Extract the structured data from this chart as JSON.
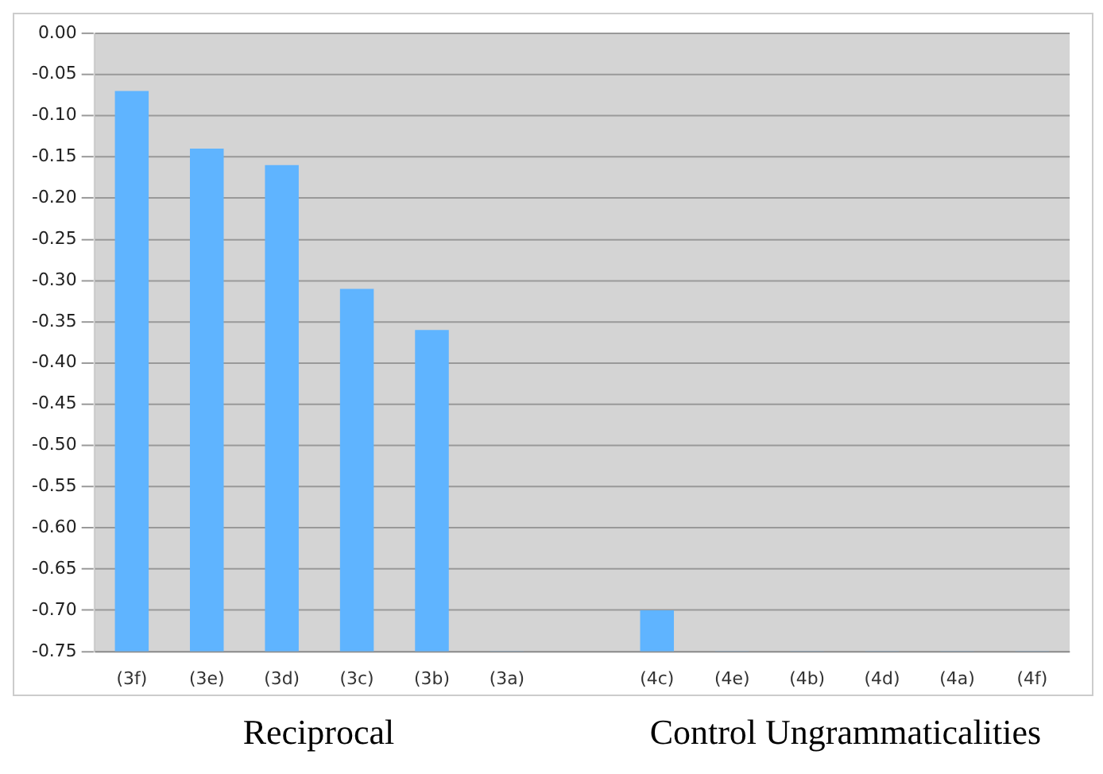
{
  "chart_data": {
    "type": "bar",
    "categories": [
      "(3f)",
      "(3e)",
      "(3d)",
      "(3c)",
      "(3b)",
      "(3a)",
      null,
      "(4c)",
      "(4e)",
      "(4b)",
      "(4d)",
      "(4a)",
      "(4f)"
    ],
    "values": [
      0.68,
      0.61,
      0.59,
      0.44,
      0.39,
      0,
      null,
      0.05,
      0,
      0,
      0,
      0,
      0
    ],
    "base": [
      -0.75,
      -0.75,
      -0.75,
      -0.75,
      -0.75,
      -0.75,
      null,
      -0.75,
      -0.75,
      -0.75,
      -0.75,
      -0.75,
      -0.75
    ],
    "color": "#5fb4ff",
    "ylim": [
      -0.75,
      0
    ],
    "yticks": [
      {
        "value": 0,
        "label": "0.00"
      },
      {
        "value": -0.05,
        "label": "-0.05"
      },
      {
        "value": -0.1,
        "label": "-0.10"
      },
      {
        "value": -0.15,
        "label": "-0.15"
      },
      {
        "value": -0.2,
        "label": "-0.20"
      },
      {
        "value": -0.25,
        "label": "-0.25"
      },
      {
        "value": -0.3,
        "label": "-0.30"
      },
      {
        "value": -0.35,
        "label": "-0.35"
      },
      {
        "value": -0.4,
        "label": "-0.40"
      },
      {
        "value": -0.45,
        "label": "-0.45"
      },
      {
        "value": -0.5,
        "label": "-0.50"
      },
      {
        "value": -0.55,
        "label": "-0.55"
      },
      {
        "value": -0.6,
        "label": "-0.60"
      },
      {
        "value": -0.65,
        "label": "-0.65"
      },
      {
        "value": -0.7,
        "label": "-0.70"
      },
      {
        "value": -0.75,
        "label": "-0.75"
      }
    ],
    "grid": "y",
    "legend": false,
    "annotations": [
      "Reciprocal",
      "Control Ungrammaticalities"
    ]
  }
}
